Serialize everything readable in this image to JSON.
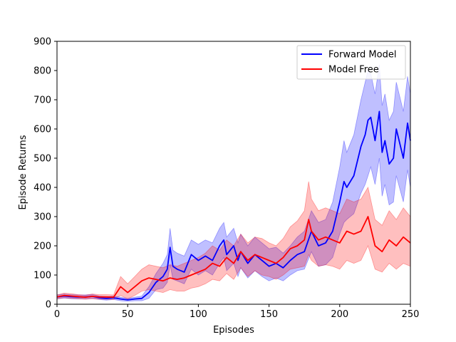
{
  "chart_data": {
    "type": "line",
    "xlabel": "Episodes",
    "ylabel": "Episode Returns",
    "xlim": [
      0,
      250
    ],
    "ylim": [
      0,
      900
    ],
    "xticks": [
      0,
      50,
      100,
      150,
      200,
      250
    ],
    "yticks": [
      0,
      100,
      200,
      300,
      400,
      500,
      600,
      700,
      800,
      900
    ],
    "grid": false,
    "legend_position": "top-right",
    "series": [
      {
        "name": "Forward Model",
        "color": "#0000ff",
        "band_color": "#0000ff",
        "x": [
          0,
          5,
          10,
          15,
          20,
          25,
          30,
          35,
          40,
          45,
          50,
          55,
          60,
          65,
          70,
          75,
          78,
          80,
          82,
          85,
          90,
          95,
          100,
          105,
          110,
          115,
          118,
          120,
          125,
          128,
          130,
          135,
          140,
          145,
          150,
          155,
          160,
          165,
          170,
          175,
          180,
          185,
          190,
          195,
          200,
          203,
          205,
          210,
          215,
          218,
          220,
          222,
          225,
          228,
          230,
          232,
          235,
          238,
          240,
          245,
          248,
          250
        ],
        "mean": [
          25,
          28,
          26,
          25,
          25,
          27,
          22,
          20,
          22,
          18,
          15,
          18,
          20,
          40,
          75,
          95,
          120,
          195,
          130,
          120,
          110,
          170,
          150,
          165,
          150,
          200,
          220,
          170,
          200,
          150,
          180,
          140,
          170,
          150,
          130,
          140,
          125,
          150,
          170,
          180,
          250,
          200,
          210,
          250,
          350,
          420,
          400,
          440,
          540,
          580,
          630,
          640,
          560,
          660,
          520,
          560,
          480,
          500,
          600,
          500,
          620,
          560
        ],
        "upper": [
          32,
          35,
          33,
          32,
          32,
          34,
          28,
          26,
          28,
          24,
          20,
          24,
          28,
          60,
          105,
          140,
          170,
          260,
          185,
          175,
          165,
          220,
          205,
          220,
          210,
          260,
          280,
          230,
          260,
          210,
          240,
          200,
          230,
          210,
          190,
          195,
          175,
          200,
          230,
          250,
          320,
          280,
          290,
          350,
          470,
          560,
          520,
          580,
          700,
          760,
          800,
          790,
          720,
          820,
          680,
          720,
          630,
          660,
          760,
          660,
          780,
          720
        ],
        "lower": [
          18,
          21,
          19,
          18,
          18,
          20,
          16,
          14,
          16,
          12,
          10,
          12,
          12,
          20,
          50,
          55,
          75,
          135,
          85,
          80,
          70,
          120,
          100,
          115,
          100,
          140,
          160,
          115,
          140,
          95,
          125,
          90,
          115,
          95,
          80,
          90,
          80,
          100,
          115,
          120,
          180,
          130,
          135,
          160,
          240,
          280,
          290,
          310,
          380,
          410,
          440,
          470,
          410,
          500,
          370,
          410,
          340,
          350,
          440,
          350,
          460,
          400
        ]
      },
      {
        "name": "Model Free",
        "color": "#ff0000",
        "band_color": "#ff0000",
        "x": [
          0,
          5,
          10,
          15,
          20,
          25,
          30,
          35,
          40,
          45,
          50,
          55,
          60,
          65,
          70,
          75,
          80,
          85,
          90,
          95,
          100,
          105,
          110,
          115,
          120,
          125,
          130,
          135,
          140,
          145,
          150,
          155,
          160,
          165,
          170,
          175,
          178,
          180,
          185,
          190,
          195,
          200,
          205,
          210,
          215,
          220,
          225,
          230,
          235,
          240,
          245,
          250
        ],
        "mean": [
          25,
          30,
          28,
          26,
          24,
          27,
          25,
          25,
          24,
          60,
          40,
          60,
          80,
          90,
          85,
          80,
          90,
          85,
          90,
          100,
          110,
          120,
          140,
          130,
          160,
          140,
          180,
          150,
          170,
          160,
          150,
          140,
          160,
          190,
          200,
          220,
          290,
          250,
          220,
          230,
          220,
          210,
          250,
          240,
          250,
          300,
          200,
          180,
          220,
          200,
          230,
          210
        ],
        "upper": [
          32,
          38,
          36,
          33,
          31,
          35,
          33,
          33,
          32,
          95,
          70,
          95,
          120,
          135,
          130,
          125,
          135,
          130,
          140,
          150,
          160,
          175,
          200,
          185,
          220,
          200,
          240,
          210,
          230,
          225,
          210,
          200,
          225,
          265,
          285,
          320,
          420,
          360,
          320,
          330,
          320,
          310,
          360,
          350,
          360,
          400,
          290,
          270,
          320,
          290,
          330,
          300
        ],
        "lower": [
          18,
          22,
          20,
          19,
          17,
          19,
          17,
          17,
          16,
          30,
          18,
          30,
          45,
          50,
          45,
          40,
          50,
          45,
          45,
          55,
          60,
          70,
          85,
          80,
          105,
          85,
          125,
          95,
          115,
          100,
          95,
          85,
          100,
          120,
          125,
          130,
          170,
          150,
          130,
          135,
          130,
          120,
          150,
          140,
          150,
          200,
          120,
          110,
          140,
          120,
          140,
          130
        ]
      }
    ]
  }
}
